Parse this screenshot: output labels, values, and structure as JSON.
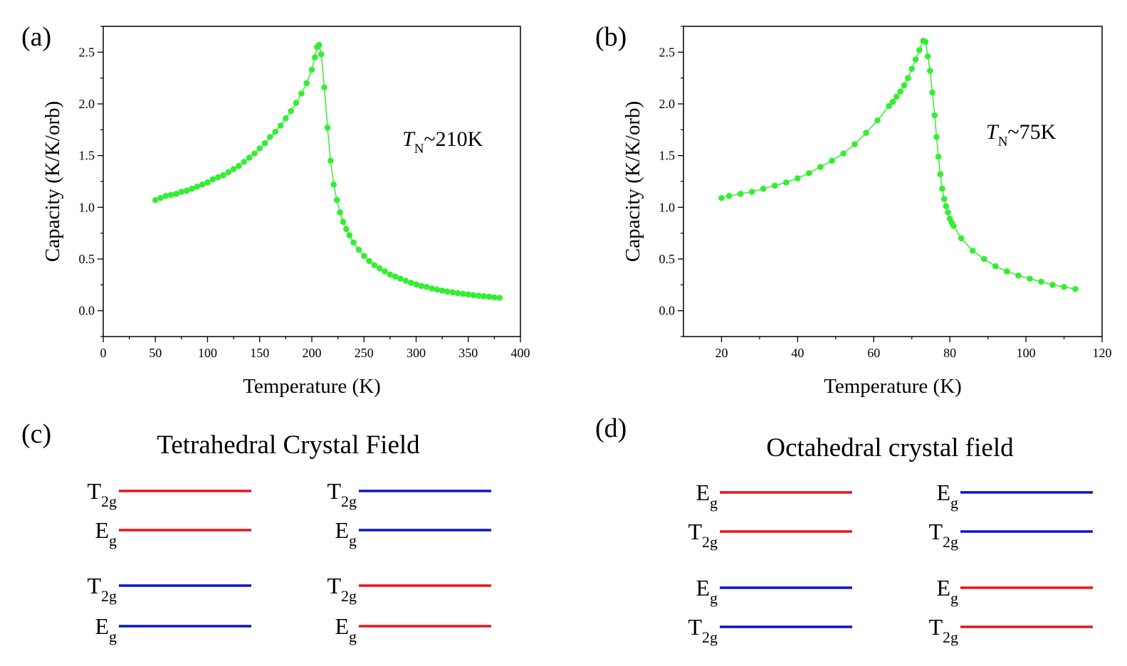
{
  "chart_data": [
    {
      "type": "line",
      "panel": "(a)",
      "xlabel": "Temperature (K)",
      "ylabel": "Capacity (K/K/orb)",
      "annotation": {
        "symbol": "T",
        "subscript": "N",
        "text": "~210K"
      },
      "color": "#33ee33",
      "markers": true,
      "xlim": [
        0,
        400
      ],
      "xticks": [
        0,
        50,
        100,
        150,
        200,
        250,
        300,
        350,
        400
      ],
      "ylim": [
        -0.25,
        2.75
      ],
      "yticks": [
        {
          "value": 0,
          "label": "0.0"
        },
        0.5,
        {
          "value": 1,
          "label": "1.0"
        },
        1.5,
        {
          "value": 2,
          "label": "2.0"
        },
        2.5
      ],
      "x": [
        50,
        55,
        60,
        65,
        70,
        75,
        80,
        85,
        90,
        95,
        100,
        105,
        110,
        115,
        120,
        125,
        130,
        135,
        140,
        145,
        150,
        155,
        160,
        165,
        170,
        175,
        180,
        185,
        190,
        195,
        200,
        203,
        205,
        207,
        209,
        212,
        215,
        218,
        221,
        224,
        227,
        230,
        233,
        236,
        240,
        245,
        250,
        255,
        260,
        265,
        270,
        275,
        280,
        285,
        290,
        295,
        300,
        305,
        310,
        315,
        320,
        325,
        330,
        335,
        340,
        345,
        350,
        355,
        360,
        365,
        370,
        375,
        380
      ],
      "values": [
        1.07,
        1.09,
        1.11,
        1.12,
        1.13,
        1.15,
        1.16,
        1.18,
        1.2,
        1.22,
        1.24,
        1.27,
        1.29,
        1.31,
        1.34,
        1.37,
        1.4,
        1.44,
        1.48,
        1.52,
        1.57,
        1.62,
        1.68,
        1.73,
        1.79,
        1.86,
        1.93,
        2.01,
        2.1,
        2.2,
        2.33,
        2.45,
        2.55,
        2.57,
        2.48,
        2.16,
        1.77,
        1.45,
        1.22,
        1.07,
        0.95,
        0.86,
        0.79,
        0.73,
        0.66,
        0.59,
        0.53,
        0.48,
        0.44,
        0.41,
        0.38,
        0.35,
        0.33,
        0.31,
        0.29,
        0.27,
        0.255,
        0.24,
        0.23,
        0.215,
        0.205,
        0.195,
        0.185,
        0.178,
        0.17,
        0.163,
        0.157,
        0.15,
        0.145,
        0.14,
        0.135,
        0.13,
        0.125
      ]
    },
    {
      "type": "line",
      "panel": "(b)",
      "xlabel": "Temperature (K)",
      "ylabel": "Capacity (K/K/orb)",
      "annotation": {
        "symbol": "T",
        "subscript": "N",
        "text": "~75K"
      },
      "color": "#33ee33",
      "markers": true,
      "xlim": [
        10,
        120
      ],
      "xticks": [
        20,
        40,
        60,
        80,
        100,
        120
      ],
      "ylim": [
        -0.25,
        2.75
      ],
      "yticks": [
        {
          "value": 0,
          "label": "0.0"
        },
        0.5,
        {
          "value": 1,
          "label": "1.0"
        },
        1.5,
        {
          "value": 2,
          "label": "2.0"
        },
        2.5
      ],
      "x": [
        20,
        22,
        25,
        28,
        31,
        34,
        37,
        40,
        43,
        46,
        49,
        52,
        55,
        58,
        61,
        64,
        65,
        66,
        67,
        68,
        69,
        70,
        71,
        72,
        73,
        73.6,
        74.2,
        74.8,
        75.4,
        76,
        76.5,
        77,
        77.5,
        78,
        78.5,
        79,
        79.5,
        80,
        80.5,
        81,
        83,
        86,
        89,
        92,
        95,
        98,
        101,
        104,
        107,
        110,
        113
      ],
      "values": [
        1.09,
        1.11,
        1.13,
        1.15,
        1.18,
        1.21,
        1.24,
        1.28,
        1.33,
        1.39,
        1.45,
        1.52,
        1.61,
        1.72,
        1.84,
        1.98,
        2.02,
        2.07,
        2.12,
        2.18,
        2.25,
        2.34,
        2.43,
        2.52,
        2.61,
        2.6,
        2.46,
        2.32,
        2.11,
        1.89,
        1.68,
        1.49,
        1.32,
        1.18,
        1.08,
        1.01,
        0.95,
        0.89,
        0.85,
        0.82,
        0.7,
        0.58,
        0.5,
        0.43,
        0.38,
        0.34,
        0.31,
        0.28,
        0.25,
        0.23,
        0.21
      ]
    }
  ],
  "diagrams": [
    {
      "panel": "(c)",
      "title": "Tetrahedral Crystal Field",
      "columns": [
        [
          {
            "symbol": "T",
            "subscript": "2g",
            "color": "#e8141c"
          },
          {
            "symbol": "E",
            "subscript": "g",
            "color": "#e8141c"
          },
          {
            "symbol": "T",
            "subscript": "2g",
            "color": "#0a14c8"
          },
          {
            "symbol": "E",
            "subscript": "g",
            "color": "#0a14c8"
          }
        ],
        [
          {
            "symbol": "T",
            "subscript": "2g",
            "color": "#0a14c8"
          },
          {
            "symbol": "E",
            "subscript": "g",
            "color": "#0a14c8"
          },
          {
            "symbol": "T",
            "subscript": "2g",
            "color": "#e8141c"
          },
          {
            "symbol": "E",
            "subscript": "g",
            "color": "#e8141c"
          }
        ]
      ]
    },
    {
      "panel": "(d)",
      "title": "Octahedral crystal field",
      "columns": [
        [
          {
            "symbol": "E",
            "subscript": "g",
            "color": "#e8141c"
          },
          {
            "symbol": "T",
            "subscript": "2g",
            "color": "#e8141c"
          },
          {
            "symbol": "E",
            "subscript": "g",
            "color": "#0a14c8"
          },
          {
            "symbol": "T",
            "subscript": "2g",
            "color": "#0a14c8"
          }
        ],
        [
          {
            "symbol": "E",
            "subscript": "g",
            "color": "#0a14c8"
          },
          {
            "symbol": "T",
            "subscript": "2g",
            "color": "#0a14c8"
          },
          {
            "symbol": "E",
            "subscript": "g",
            "color": "#e8141c"
          },
          {
            "symbol": "T",
            "subscript": "2g",
            "color": "#e8141c"
          }
        ]
      ]
    }
  ]
}
